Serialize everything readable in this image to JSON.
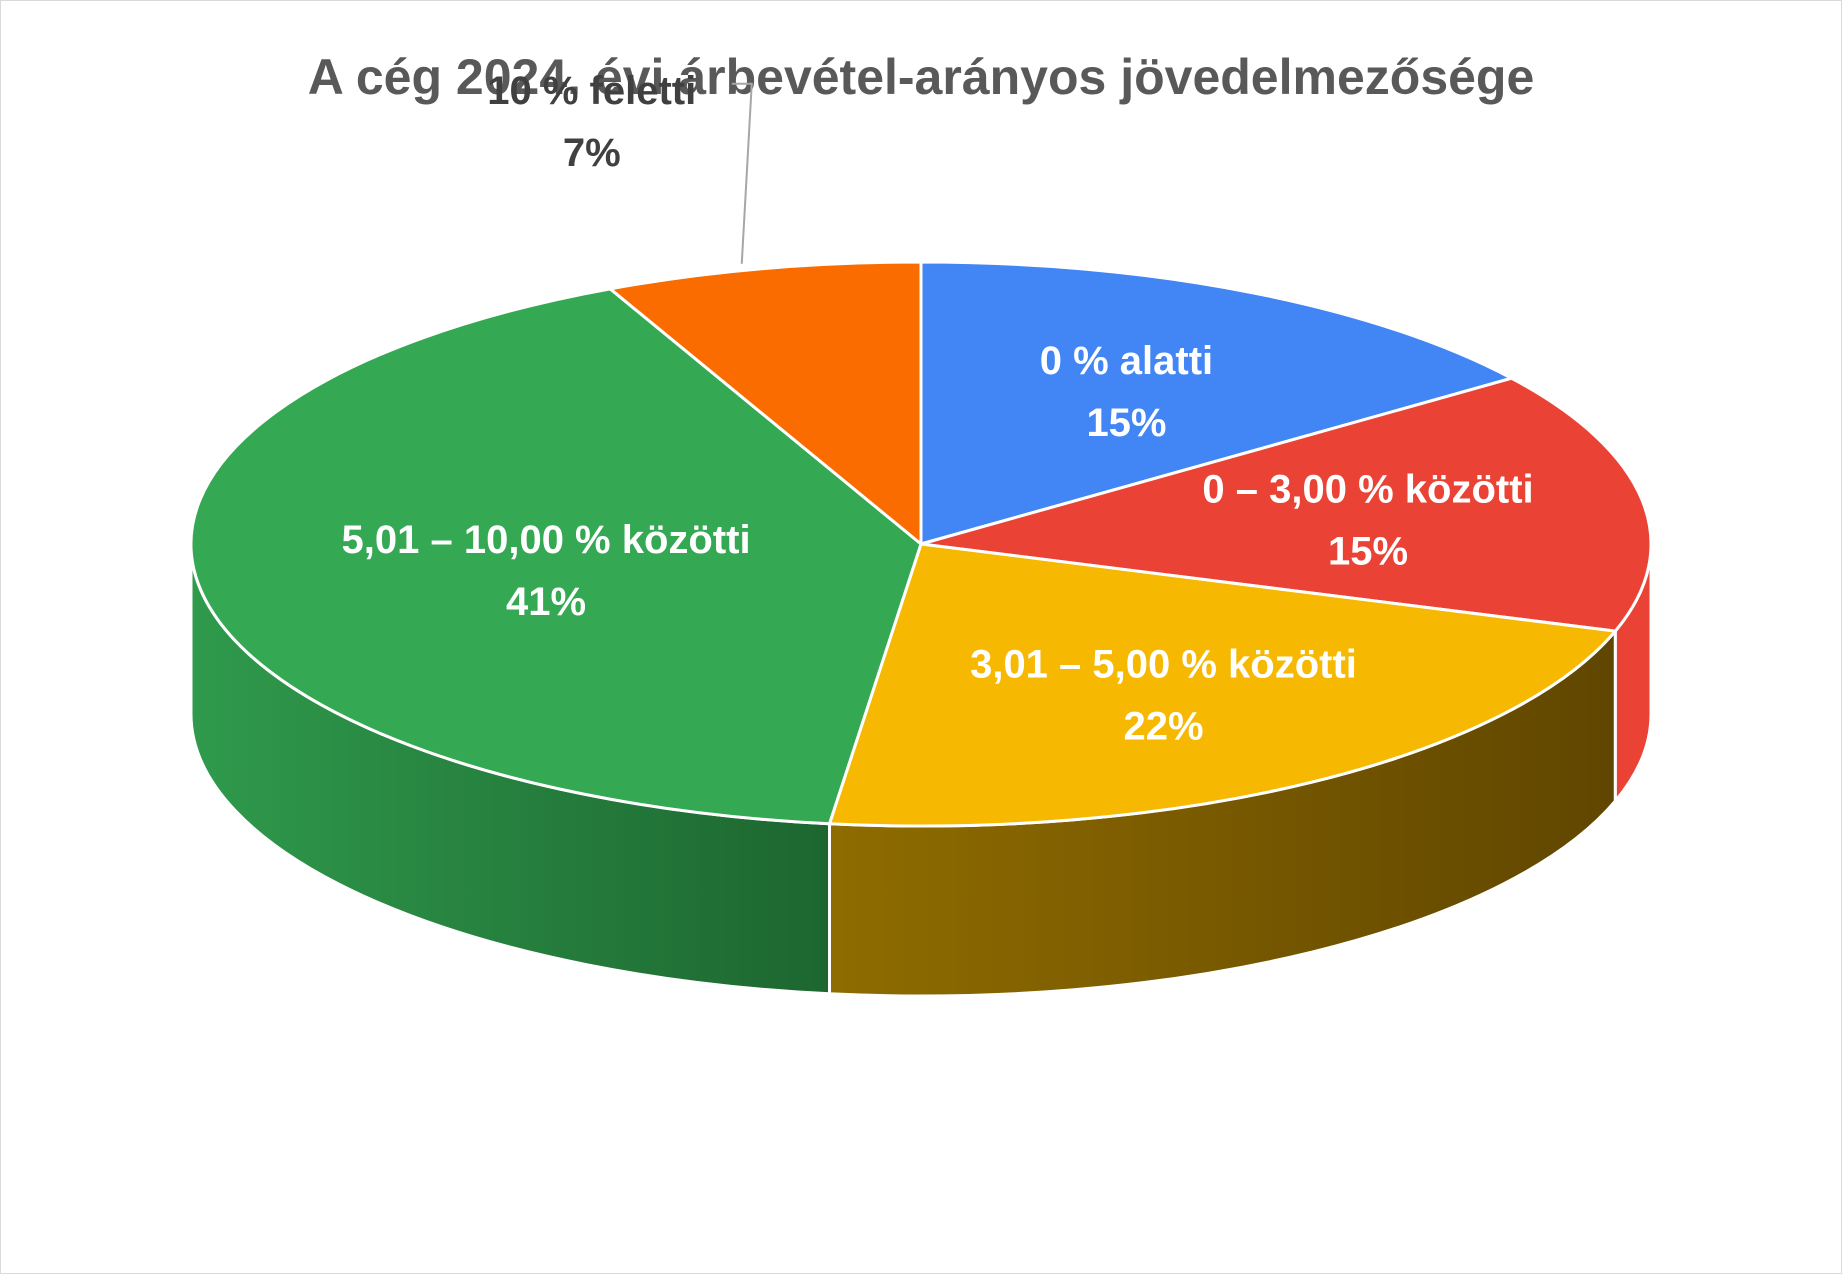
{
  "chart_data": {
    "type": "pie",
    "title": "A cég 2024. évi árbevétel-arányos jövedelmezősége",
    "slices": [
      {
        "label": "0 % alatti",
        "value": 15,
        "value_label": "15%",
        "color": "#4285F4",
        "label_color": "#ffffff"
      },
      {
        "label": "0 – 3,00 % közötti",
        "value": 15,
        "value_label": "15%",
        "color": "#EA4335",
        "label_color": "#ffffff"
      },
      {
        "label": "3,01 – 5,00 % közötti",
        "value": 22,
        "value_label": "22%",
        "color": "#F6B800",
        "label_color": "#ffffff"
      },
      {
        "label": "5,01 – 10,00 % közötti",
        "value": 41,
        "value_label": "41%",
        "color": "#34A853",
        "label_color": "#ffffff"
      },
      {
        "label": "10 % feletti",
        "value": 7,
        "value_label": "7%",
        "color": "#FA6B00",
        "label_color": "#404040"
      }
    ],
    "legend": "none",
    "style": "3d-pie"
  }
}
